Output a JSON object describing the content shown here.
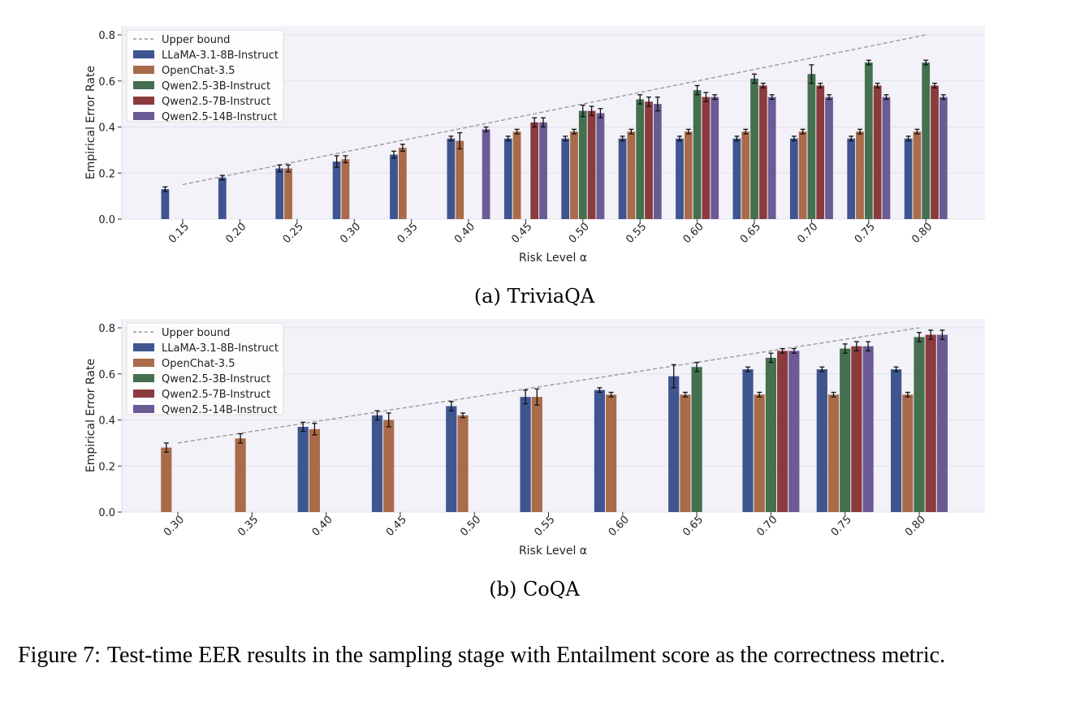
{
  "figure": {
    "caption_label": "Figure 7:",
    "caption_text": "Test-time EER results in the sampling stage with Entailment score as the correctness metric."
  },
  "colors": {
    "plot_bg": "#F3F2F9",
    "grid": "#E2E1EC",
    "upper_bound": "#9A9A9A",
    "series": [
      "#3F5590",
      "#A96B49",
      "#44704F",
      "#8B3B3D",
      "#6B5B95"
    ]
  },
  "chart_data": [
    {
      "type": "bar",
      "subcaption": "(a) TriviaQA",
      "xlabel": "Risk Level α",
      "ylabel": "Empirical Error Rate",
      "ylim": [
        0,
        0.8
      ],
      "yticks": [
        "0.0",
        "0.2",
        "0.4",
        "0.6",
        "0.8"
      ],
      "categories": [
        "0.15",
        "0.20",
        "0.25",
        "0.30",
        "0.35",
        "0.40",
        "0.45",
        "0.50",
        "0.55",
        "0.60",
        "0.65",
        "0.70",
        "0.75",
        "0.80"
      ],
      "legend": [
        "Upper bound",
        "LLaMA-3.1-8B-Instruct",
        "OpenChat-3.5",
        "Qwen2.5-3B-Instruct",
        "Qwen2.5-7B-Instruct",
        "Qwen2.5-14B-Instruct"
      ],
      "legend_position": "top-left",
      "upper_bound": {
        "name": "Upper bound",
        "x": [
          0.15,
          0.8
        ],
        "y": [
          0.15,
          0.8
        ]
      },
      "series": [
        {
          "name": "LLaMA-3.1-8B-Instruct",
          "values": [
            0.13,
            0.18,
            0.22,
            0.25,
            0.28,
            0.35,
            0.35,
            0.35,
            0.35,
            0.35,
            0.35,
            0.35,
            0.35,
            0.35
          ],
          "errors": [
            0.01,
            0.01,
            0.015,
            0.025,
            0.015,
            0.01,
            0.01,
            0.01,
            0.01,
            0.01,
            0.01,
            0.01,
            0.01,
            0.01
          ]
        },
        {
          "name": "OpenChat-3.5",
          "values": [
            null,
            null,
            0.22,
            0.26,
            0.31,
            0.34,
            0.38,
            0.38,
            0.38,
            0.38,
            0.38,
            0.38,
            0.38,
            0.38
          ],
          "errors": [
            0,
            0,
            0.015,
            0.015,
            0.015,
            0.035,
            0.01,
            0.01,
            0.01,
            0.01,
            0.01,
            0.01,
            0.01,
            0.01
          ]
        },
        {
          "name": "Qwen2.5-3B-Instruct",
          "values": [
            null,
            null,
            null,
            null,
            null,
            null,
            null,
            0.47,
            0.52,
            0.56,
            0.61,
            0.63,
            0.68,
            0.68
          ],
          "errors": [
            0,
            0,
            0,
            0,
            0,
            0,
            0,
            0.025,
            0.02,
            0.02,
            0.02,
            0.04,
            0.01,
            0.01
          ]
        },
        {
          "name": "Qwen2.5-7B-Instruct",
          "values": [
            null,
            null,
            null,
            null,
            null,
            null,
            0.42,
            0.47,
            0.51,
            0.53,
            0.58,
            0.58,
            0.58,
            0.58
          ],
          "errors": [
            0,
            0,
            0,
            0,
            0,
            0,
            0.02,
            0.02,
            0.02,
            0.02,
            0.01,
            0.01,
            0.01,
            0.01
          ]
        },
        {
          "name": "Qwen2.5-14B-Instruct",
          "values": [
            null,
            null,
            null,
            null,
            null,
            0.39,
            0.42,
            0.46,
            0.5,
            0.53,
            0.53,
            0.53,
            0.53,
            0.53
          ],
          "errors": [
            0,
            0,
            0,
            0,
            0,
            0.01,
            0.02,
            0.02,
            0.03,
            0.01,
            0.01,
            0.01,
            0.01,
            0.01
          ]
        }
      ]
    },
    {
      "type": "bar",
      "subcaption": "(b) CoQA",
      "xlabel": "Risk Level α",
      "ylabel": "Empirical Error Rate",
      "ylim": [
        0,
        0.8
      ],
      "yticks": [
        "0.0",
        "0.2",
        "0.4",
        "0.6",
        "0.8"
      ],
      "categories": [
        "0.30",
        "0.35",
        "0.40",
        "0.45",
        "0.50",
        "0.55",
        "0.60",
        "0.65",
        "0.70",
        "0.75",
        "0.80"
      ],
      "legend": [
        "Upper bound",
        "LLaMA-3.1-8B-Instruct",
        "OpenChat-3.5",
        "Qwen2.5-3B-Instruct",
        "Qwen2.5-7B-Instruct",
        "Qwen2.5-14B-Instruct"
      ],
      "legend_position": "top-left",
      "upper_bound": {
        "name": "Upper bound",
        "x": [
          0.3,
          0.8
        ],
        "y": [
          0.3,
          0.8
        ]
      },
      "series": [
        {
          "name": "LLaMA-3.1-8B-Instruct",
          "values": [
            null,
            null,
            0.37,
            0.42,
            0.46,
            0.5,
            0.53,
            0.59,
            0.62,
            0.62,
            0.62
          ],
          "errors": [
            0,
            0,
            0.02,
            0.02,
            0.02,
            0.03,
            0.01,
            0.05,
            0.01,
            0.01,
            0.01
          ]
        },
        {
          "name": "OpenChat-3.5",
          "values": [
            0.28,
            0.32,
            0.36,
            0.4,
            0.42,
            0.5,
            0.51,
            0.51,
            0.51,
            0.51,
            0.51
          ],
          "errors": [
            0.02,
            0.02,
            0.025,
            0.03,
            0.01,
            0.035,
            0.01,
            0.01,
            0.01,
            0.01,
            0.01
          ]
        },
        {
          "name": "Qwen2.5-3B-Instruct",
          "values": [
            null,
            null,
            null,
            null,
            null,
            null,
            null,
            0.63,
            0.67,
            0.71,
            0.76
          ],
          "errors": [
            0,
            0,
            0,
            0,
            0,
            0,
            0,
            0.02,
            0.02,
            0.02,
            0.02
          ]
        },
        {
          "name": "Qwen2.5-7B-Instruct",
          "values": [
            null,
            null,
            null,
            null,
            null,
            null,
            null,
            null,
            0.7,
            0.72,
            0.77
          ],
          "errors": [
            0,
            0,
            0,
            0,
            0,
            0,
            0,
            0,
            0.01,
            0.02,
            0.02
          ]
        },
        {
          "name": "Qwen2.5-14B-Instruct",
          "values": [
            null,
            null,
            null,
            null,
            null,
            null,
            null,
            null,
            0.7,
            0.72,
            0.77
          ],
          "errors": [
            0,
            0,
            0,
            0,
            0,
            0,
            0,
            0,
            0.01,
            0.02,
            0.02
          ]
        }
      ]
    }
  ]
}
